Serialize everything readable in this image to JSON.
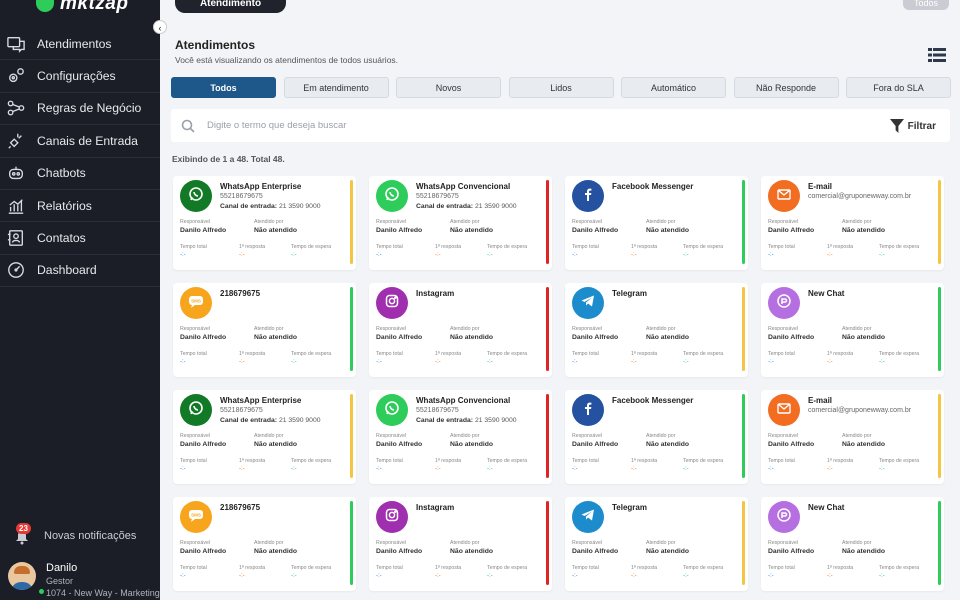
{
  "sidebar": {
    "logo": "mktzap",
    "items": [
      {
        "label": "Atendimentos",
        "icon": "chat-icon"
      },
      {
        "label": "Configurações",
        "icon": "gears-icon"
      },
      {
        "label": "Regras de Negócio",
        "icon": "flow-icon"
      },
      {
        "label": "Canais de Entrada",
        "icon": "plug-icon"
      },
      {
        "label": "Chatbots",
        "icon": "robot-icon"
      },
      {
        "label": "Relatórios",
        "icon": "chart-icon"
      },
      {
        "label": "Contatos",
        "icon": "contacts-icon"
      },
      {
        "label": "Dashboard",
        "icon": "gauge-icon"
      }
    ],
    "notifications": {
      "count": "23",
      "label": "Novas notificações"
    },
    "user": {
      "name": "Danilo",
      "role": "Gestor",
      "company": "1074 - New Way - Marketing"
    }
  },
  "topbar": {
    "tab": "Atendimento",
    "todos": "Todos"
  },
  "main": {
    "title": "Atendimentos",
    "subtitle": "Você está visualizando os atendimentos de todos usuários.",
    "filters": [
      "Todos",
      "Em atendimento",
      "Novos",
      "Lidos",
      "Automático",
      "Não Responde",
      "Fora do SLA"
    ],
    "active_filter": 0,
    "search_placeholder": "Digite o termo que deseja buscar",
    "filter_label": "Filtrar",
    "count": "Exibindo de 1 a 48. Total 48."
  },
  "labels": {
    "responsavel": "Responsável",
    "atendido": "Atendido por",
    "tempo_total": "Tempo total",
    "resposta": "1ª resposta",
    "espera": "Tempo de espera",
    "canal": "Canal de entrada:"
  },
  "colors": {
    "green": "#2ecc5a",
    "red": "#e02424",
    "yellow": "#f4c542"
  },
  "cards": [
    {
      "name": "WhatsApp Enterprise",
      "phone": "55218679675",
      "canal": "21 3590 9000",
      "resp": "Danilo Alfredo",
      "atendido": "Não atendido",
      "bar": "#f4c542",
      "icon": "whatsapp-icon",
      "iconbg": "#127a27"
    },
    {
      "name": "WhatsApp Convencional",
      "phone": "55218679675",
      "canal": "21 3590 9000",
      "resp": "Danilo Alfredo",
      "atendido": "Não atendido",
      "bar": "#e02424",
      "icon": "whatsapp-icon",
      "iconbg": "#2ecc5a"
    },
    {
      "name": "Facebook Messenger",
      "phone": "",
      "canal": "",
      "resp": "Danilo Alfredo",
      "atendido": "Não atendido",
      "bar": "#2ecc5a",
      "icon": "facebook-icon",
      "iconbg": "#2452a0"
    },
    {
      "name": "E-mail",
      "phone": "comercial@gruponewway.com.br",
      "canal": "",
      "resp": "Danilo Alfredo",
      "atendido": "Não atendido",
      "bar": "#f4c542",
      "icon": "email-icon",
      "iconbg": "#f26c21"
    },
    {
      "name": "218679675",
      "phone": "",
      "canal": "",
      "resp": "Danilo Alfredo",
      "atendido": "Não atendido",
      "bar": "#2ecc5a",
      "icon": "sms-icon",
      "iconbg": "#f7a51c"
    },
    {
      "name": "Instagram",
      "phone": "",
      "canal": "",
      "resp": "Danilo Alfredo",
      "atendido": "Não atendido",
      "bar": "#e02424",
      "icon": "instagram-icon",
      "iconbg": "#a02fb0"
    },
    {
      "name": "Telegram",
      "phone": "",
      "canal": "",
      "resp": "Danilo Alfredo",
      "atendido": "Não atendido",
      "bar": "#f4c542",
      "icon": "telegram-icon",
      "iconbg": "#1d8ccd"
    },
    {
      "name": "New Chat",
      "phone": "",
      "canal": "",
      "resp": "Danilo Alfredo",
      "atendido": "Não atendido",
      "bar": "#2ecc5a",
      "icon": "newchat-icon",
      "iconbg": "#b56fe0"
    },
    {
      "name": "WhatsApp Enterprise",
      "phone": "55218679675",
      "canal": "21 3590 9000",
      "resp": "Danilo Alfredo",
      "atendido": "Não atendido",
      "bar": "#f4c542",
      "icon": "whatsapp-icon",
      "iconbg": "#127a27"
    },
    {
      "name": "WhatsApp Convencional",
      "phone": "55218679675",
      "canal": "21 3590 9000",
      "resp": "Danilo Alfredo",
      "atendido": "Não atendido",
      "bar": "#e02424",
      "icon": "whatsapp-icon",
      "iconbg": "#2ecc5a"
    },
    {
      "name": "Facebook Messenger",
      "phone": "",
      "canal": "",
      "resp": "Danilo Alfredo",
      "atendido": "Não atendido",
      "bar": "#2ecc5a",
      "icon": "facebook-icon",
      "iconbg": "#2452a0"
    },
    {
      "name": "E-mail",
      "phone": "comercial@gruponewway.com.br",
      "canal": "",
      "resp": "Danilo Alfredo",
      "atendido": "Não atendido",
      "bar": "#f4c542",
      "icon": "email-icon",
      "iconbg": "#f26c21"
    },
    {
      "name": "218679675",
      "phone": "",
      "canal": "",
      "resp": "Danilo Alfredo",
      "atendido": "Não atendido",
      "bar": "#2ecc5a",
      "icon": "sms-icon",
      "iconbg": "#f7a51c"
    },
    {
      "name": "Instagram",
      "phone": "",
      "canal": "",
      "resp": "Danilo Alfredo",
      "atendido": "Não atendido",
      "bar": "#e02424",
      "icon": "instagram-icon",
      "iconbg": "#a02fb0"
    },
    {
      "name": "Telegram",
      "phone": "",
      "canal": "",
      "resp": "Danilo Alfredo",
      "atendido": "Não atendido",
      "bar": "#f4c542",
      "icon": "telegram-icon",
      "iconbg": "#1d8ccd"
    },
    {
      "name": "New Chat",
      "phone": "",
      "canal": "",
      "resp": "Danilo Alfredo",
      "atendido": "Não atendido",
      "bar": "#2ecc5a",
      "icon": "newchat-icon",
      "iconbg": "#b56fe0"
    }
  ],
  "time_placeholder": "-:-"
}
